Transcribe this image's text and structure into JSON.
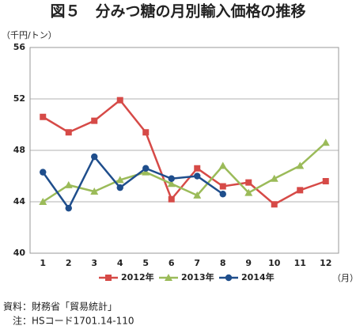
{
  "chart_data": {
    "type": "line",
    "title": "図５　分みつ糖の月別輸入価格の推移",
    "y_label": "（千円/トン）",
    "x_label": "（月）",
    "categories": [
      "1",
      "2",
      "3",
      "4",
      "5",
      "6",
      "7",
      "8",
      "9",
      "10",
      "11",
      "12"
    ],
    "series": [
      {
        "name": "2012年",
        "color": "#d64a47",
        "marker": "square",
        "values": [
          50.6,
          49.4,
          50.3,
          51.9,
          49.4,
          44.2,
          46.6,
          45.2,
          45.5,
          43.8,
          44.9,
          45.6
        ]
      },
      {
        "name": "2013年",
        "color": "#9bbb59",
        "marker": "triangle",
        "values": [
          44.0,
          45.3,
          44.8,
          45.7,
          46.3,
          45.4,
          44.5,
          46.8,
          44.7,
          45.8,
          46.8,
          48.6
        ]
      },
      {
        "name": "2014年",
        "color": "#1f4e8c",
        "marker": "circle",
        "values": [
          46.3,
          43.5,
          47.5,
          45.1,
          46.6,
          45.8,
          46.0,
          44.6,
          null,
          null,
          null,
          null
        ]
      }
    ],
    "ylim": [
      40,
      56
    ],
    "yticks": [
      40,
      44,
      48,
      52,
      56
    ],
    "grid": true,
    "legend": "bottom",
    "source": "資料：財務省「貿易統計」",
    "note": "注：HSコード1701.14-110"
  }
}
